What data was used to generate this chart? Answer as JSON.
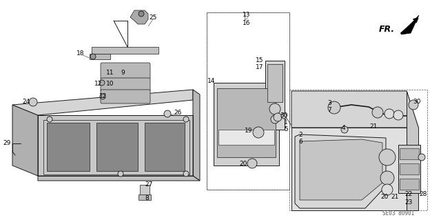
{
  "background_color": "#ffffff",
  "figsize": [
    6.4,
    3.19
  ],
  "dpi": 100,
  "watermark": "SE03 80901",
  "fr_label": "FR.",
  "line_color": "#1a1a1a",
  "gray_fill": "#d8d8d8",
  "dark_fill": "#aaaaaa",
  "text_color": "#000000",
  "font_size_labels": 6.5,
  "font_size_watermark": 5.5,
  "font_size_fr": 8
}
